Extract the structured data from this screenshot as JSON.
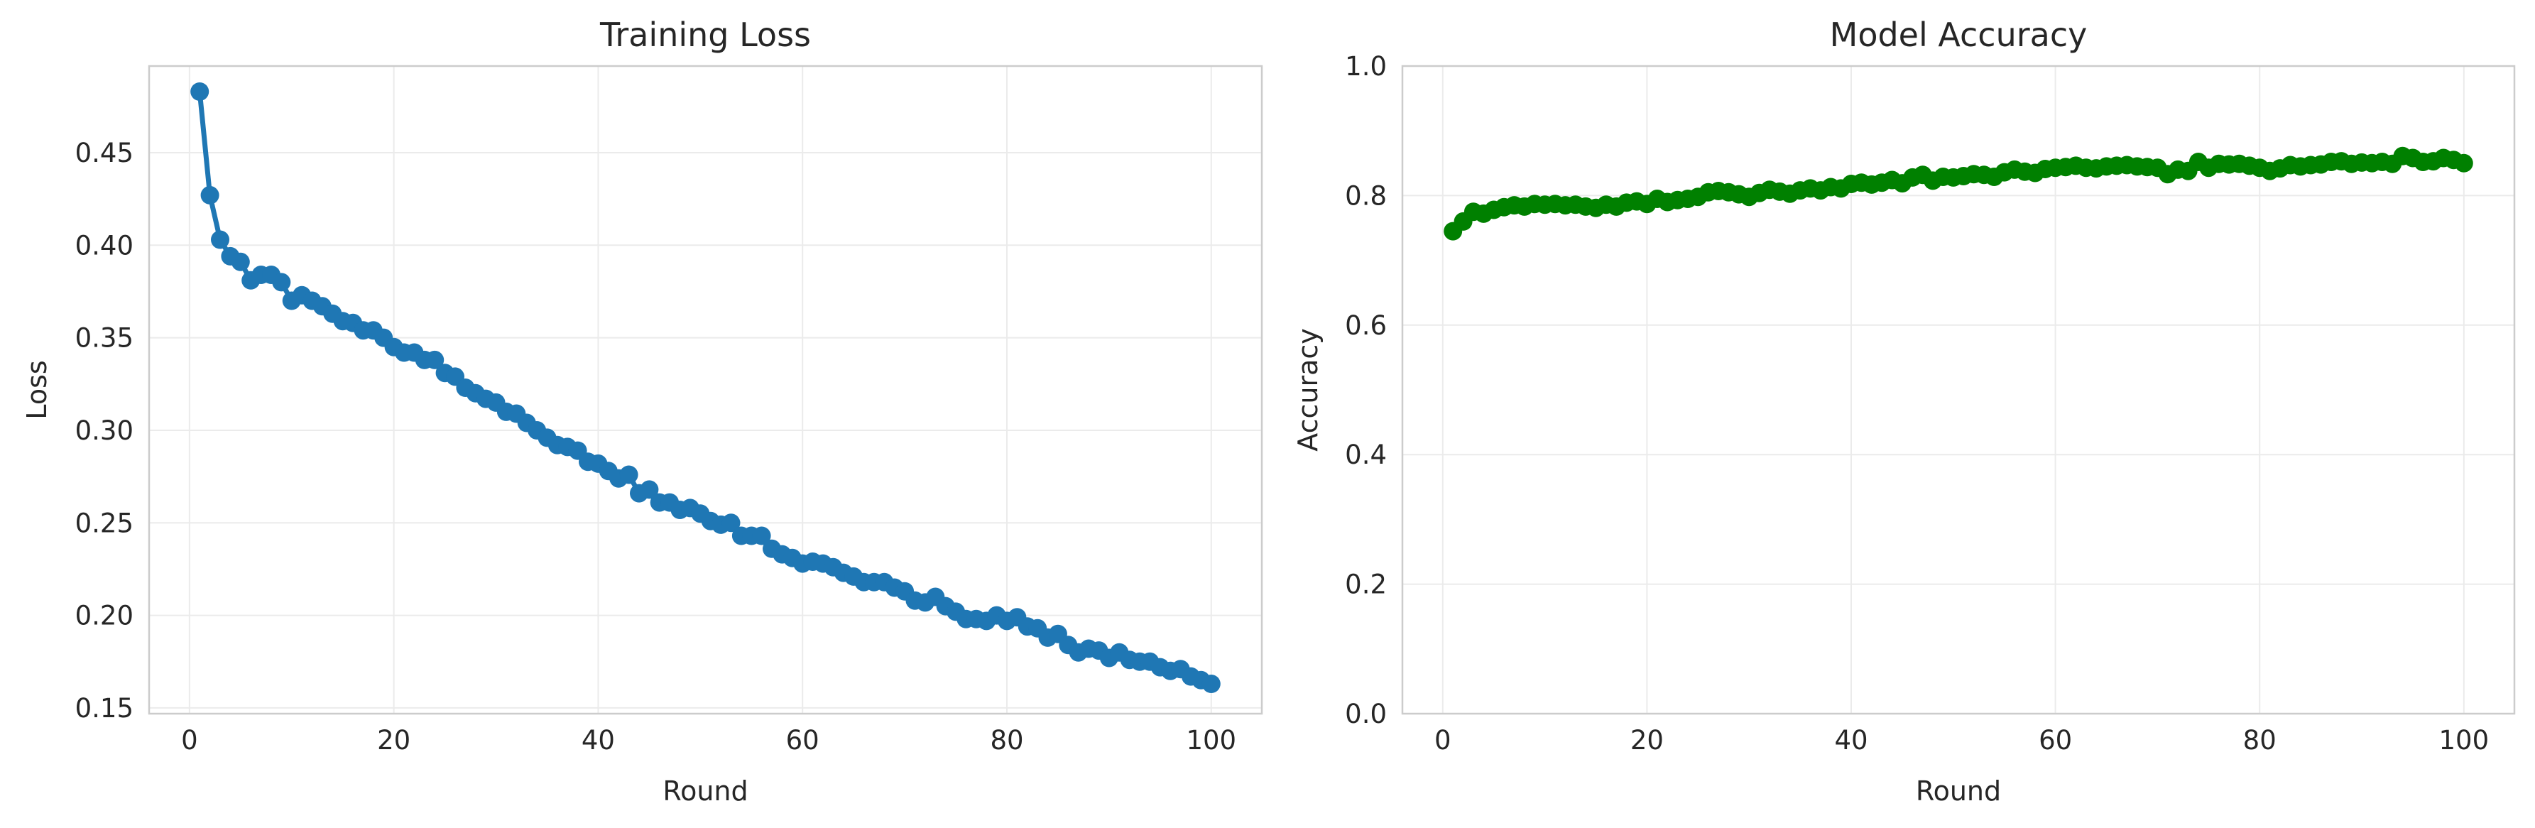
{
  "chart_data": [
    {
      "type": "line",
      "title": "Training Loss",
      "xlabel": "Round",
      "ylabel": "Loss",
      "xlim": [
        -3.95,
        104.95
      ],
      "ylim": [
        0.1469,
        0.4968
      ],
      "xticks": [
        0,
        20,
        40,
        60,
        80,
        100
      ],
      "yticks": [
        0.15,
        0.2,
        0.25,
        0.3,
        0.35,
        0.4,
        0.45
      ],
      "ytick_decimals": 2,
      "grid": true,
      "color": "#1f77b4",
      "marker": "circle",
      "x": [
        1,
        2,
        3,
        4,
        5,
        6,
        7,
        8,
        9,
        10,
        11,
        12,
        13,
        14,
        15,
        16,
        17,
        18,
        19,
        20,
        21,
        22,
        23,
        24,
        25,
        26,
        27,
        28,
        29,
        30,
        31,
        32,
        33,
        34,
        35,
        36,
        37,
        38,
        39,
        40,
        41,
        42,
        43,
        44,
        45,
        46,
        47,
        48,
        49,
        50,
        51,
        52,
        53,
        54,
        55,
        56,
        57,
        58,
        59,
        60,
        61,
        62,
        63,
        64,
        65,
        66,
        67,
        68,
        69,
        70,
        71,
        72,
        73,
        74,
        75,
        76,
        77,
        78,
        79,
        80,
        81,
        82,
        83,
        84,
        85,
        86,
        87,
        88,
        89,
        90,
        91,
        92,
        93,
        94,
        95,
        96,
        97,
        98,
        99,
        100
      ],
      "y": [
        0.483,
        0.427,
        0.403,
        0.394,
        0.391,
        0.381,
        0.384,
        0.384,
        0.38,
        0.37,
        0.373,
        0.37,
        0.367,
        0.363,
        0.359,
        0.358,
        0.354,
        0.354,
        0.35,
        0.345,
        0.342,
        0.342,
        0.338,
        0.338,
        0.331,
        0.329,
        0.323,
        0.32,
        0.317,
        0.315,
        0.31,
        0.309,
        0.304,
        0.3,
        0.296,
        0.292,
        0.291,
        0.289,
        0.283,
        0.282,
        0.278,
        0.274,
        0.276,
        0.266,
        0.268,
        0.261,
        0.261,
        0.257,
        0.258,
        0.255,
        0.251,
        0.249,
        0.25,
        0.243,
        0.243,
        0.243,
        0.236,
        0.233,
        0.231,
        0.228,
        0.229,
        0.228,
        0.226,
        0.223,
        0.221,
        0.218,
        0.218,
        0.218,
        0.215,
        0.213,
        0.208,
        0.207,
        0.21,
        0.205,
        0.202,
        0.198,
        0.198,
        0.197,
        0.2,
        0.197,
        0.199,
        0.194,
        0.193,
        0.188,
        0.19,
        0.184,
        0.18,
        0.182,
        0.181,
        0.177,
        0.18,
        0.176,
        0.175,
        0.175,
        0.172,
        0.17,
        0.171,
        0.167,
        0.165,
        0.163
      ]
    },
    {
      "type": "line",
      "title": "Model Accuracy",
      "xlabel": "Round",
      "ylabel": "Accuracy",
      "xlim": [
        -3.95,
        104.95
      ],
      "ylim": [
        0,
        1
      ],
      "xticks": [
        0,
        20,
        40,
        60,
        80,
        100
      ],
      "yticks": [
        0.0,
        0.2,
        0.4,
        0.6,
        0.8,
        1.0
      ],
      "ytick_decimals": 1,
      "grid": true,
      "color": "#008000",
      "marker": "circle",
      "x": [
        1,
        2,
        3,
        4,
        5,
        6,
        7,
        8,
        9,
        10,
        11,
        12,
        13,
        14,
        15,
        16,
        17,
        18,
        19,
        20,
        21,
        22,
        23,
        24,
        25,
        26,
        27,
        28,
        29,
        30,
        31,
        32,
        33,
        34,
        35,
        36,
        37,
        38,
        39,
        40,
        41,
        42,
        43,
        44,
        45,
        46,
        47,
        48,
        49,
        50,
        51,
        52,
        53,
        54,
        55,
        56,
        57,
        58,
        59,
        60,
        61,
        62,
        63,
        64,
        65,
        66,
        67,
        68,
        69,
        70,
        71,
        72,
        73,
        74,
        75,
        76,
        77,
        78,
        79,
        80,
        81,
        82,
        83,
        84,
        85,
        86,
        87,
        88,
        89,
        90,
        91,
        92,
        93,
        94,
        95,
        96,
        97,
        98,
        99,
        100
      ],
      "y": [
        0.745,
        0.76,
        0.775,
        0.772,
        0.778,
        0.782,
        0.785,
        0.783,
        0.787,
        0.786,
        0.787,
        0.785,
        0.786,
        0.783,
        0.781,
        0.786,
        0.783,
        0.789,
        0.791,
        0.787,
        0.795,
        0.79,
        0.793,
        0.795,
        0.798,
        0.805,
        0.807,
        0.805,
        0.802,
        0.798,
        0.804,
        0.809,
        0.806,
        0.803,
        0.808,
        0.811,
        0.808,
        0.813,
        0.811,
        0.818,
        0.82,
        0.817,
        0.82,
        0.824,
        0.819,
        0.828,
        0.832,
        0.823,
        0.829,
        0.828,
        0.83,
        0.833,
        0.832,
        0.829,
        0.836,
        0.84,
        0.837,
        0.835,
        0.841,
        0.843,
        0.844,
        0.846,
        0.843,
        0.842,
        0.845,
        0.846,
        0.847,
        0.845,
        0.844,
        0.843,
        0.833,
        0.84,
        0.838,
        0.852,
        0.843,
        0.849,
        0.848,
        0.849,
        0.846,
        0.843,
        0.838,
        0.842,
        0.847,
        0.845,
        0.847,
        0.848,
        0.852,
        0.853,
        0.849,
        0.851,
        0.85,
        0.852,
        0.849,
        0.861,
        0.858,
        0.852,
        0.853,
        0.858,
        0.855,
        0.85
      ]
    }
  ]
}
